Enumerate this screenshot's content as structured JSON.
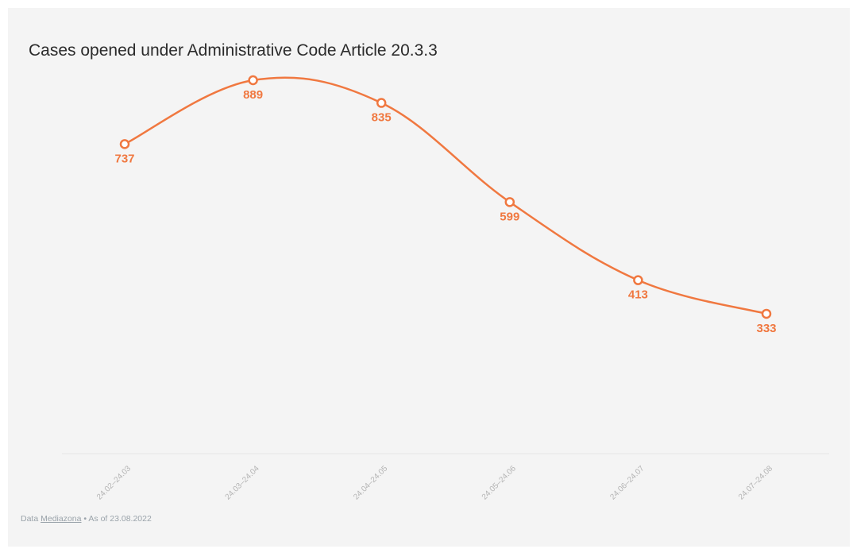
{
  "chart_data": {
    "type": "line",
    "title": "Cases opened under Administrative Code Article 20.3.3",
    "categories": [
      "24.02–24.03",
      "24.03–24.04",
      "24.04–24.05",
      "24.05–24.06",
      "24.06–24.07",
      "24.07–24.08"
    ],
    "values": [
      737,
      889,
      835,
      599,
      413,
      333
    ],
    "data_labels": [
      "737",
      "889",
      "835",
      "599",
      "413",
      "333"
    ],
    "xlabel": "",
    "ylabel": "",
    "ylim": [
      0,
      950
    ],
    "grid": false,
    "legend": "none",
    "line_color": "#f07840",
    "marker_fill": "#ffffff",
    "axis_color": "#e6e6e6"
  },
  "footer": {
    "prefix": "Data ",
    "source_link": "Mediazona",
    "suffix": " • As of 23.08.2022"
  }
}
